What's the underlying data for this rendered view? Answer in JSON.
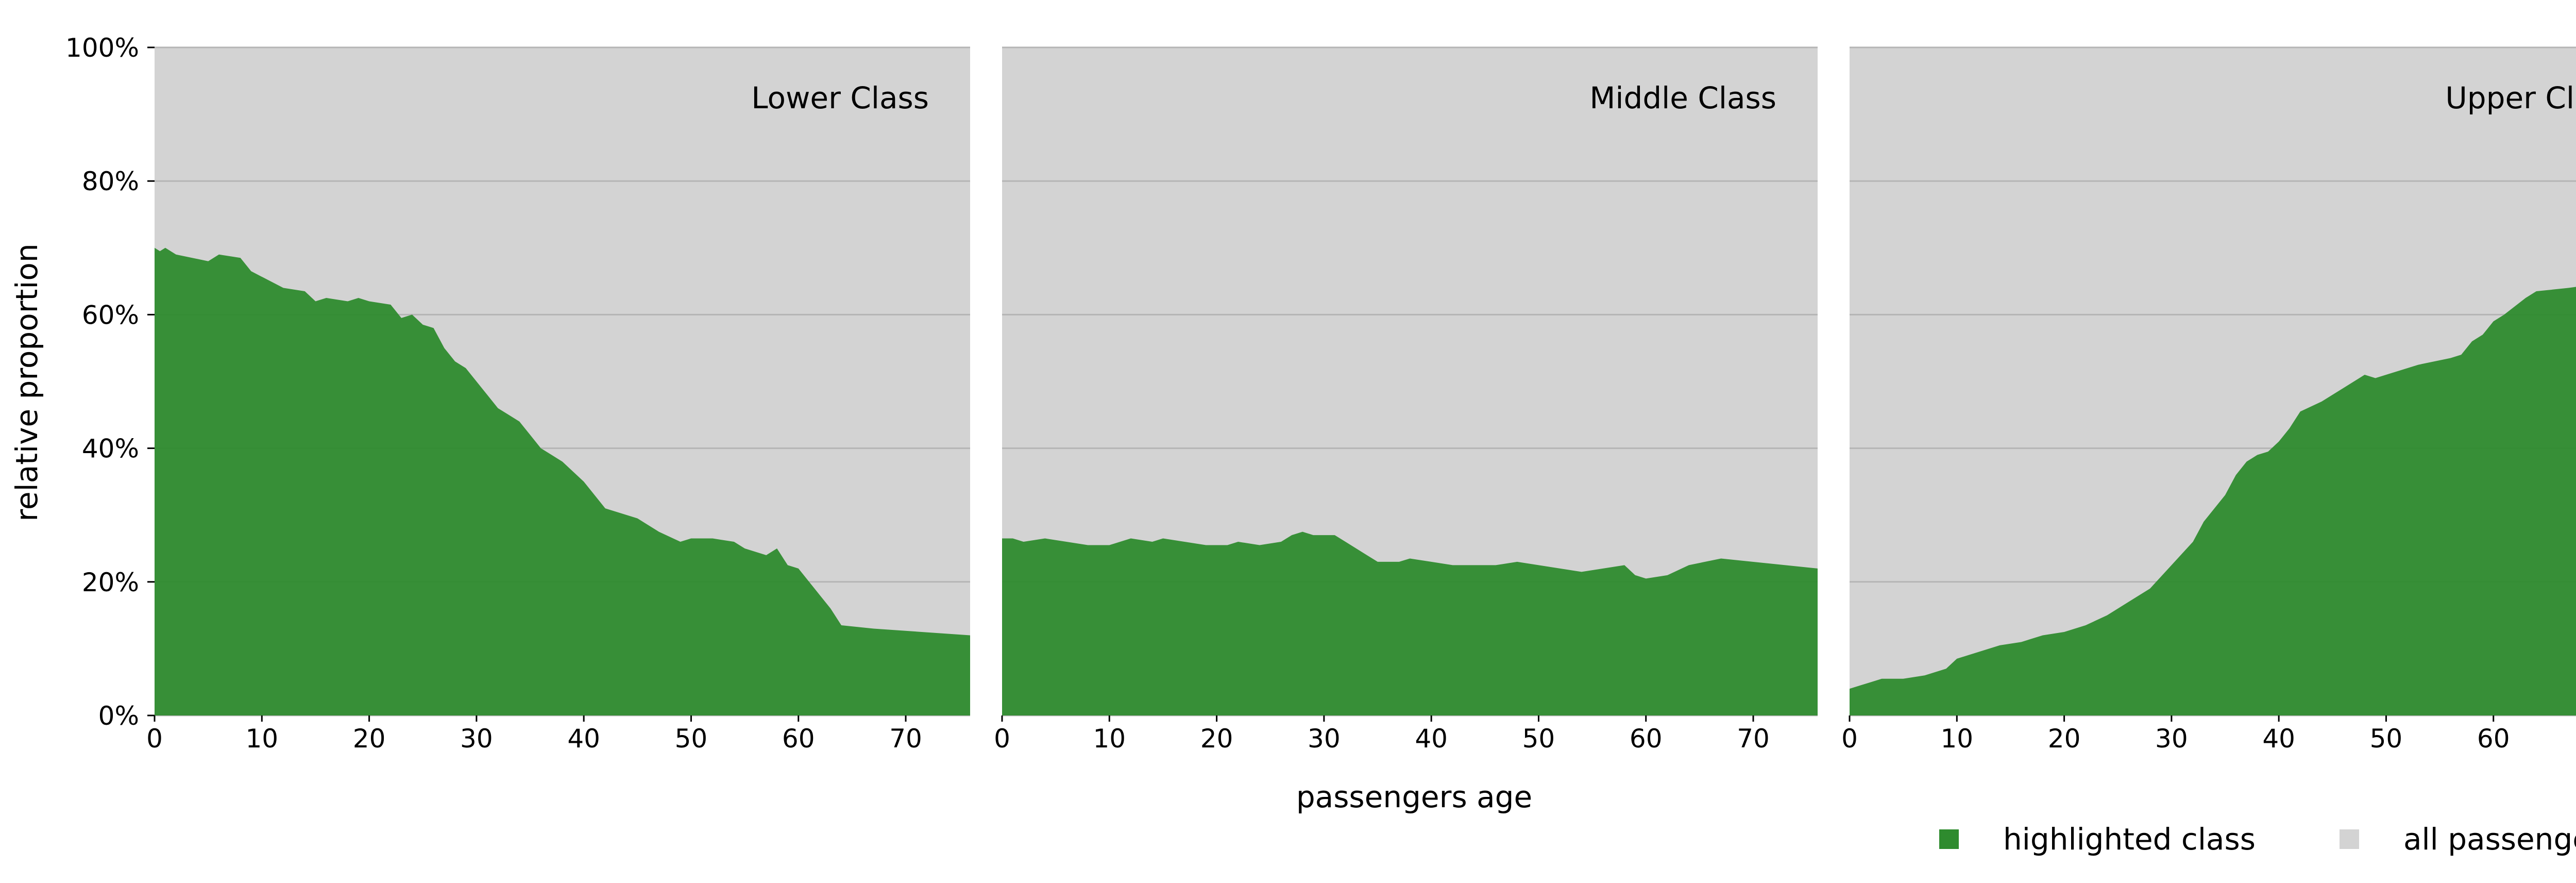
{
  "chart_data": {
    "type": "area",
    "xlabel": "passengers age",
    "ylabel": "relative proportion",
    "xlim": [
      0,
      76
    ],
    "ylim": [
      0,
      100
    ],
    "x_ticks": [
      0,
      10,
      20,
      30,
      40,
      50,
      60,
      70
    ],
    "x_tick_labels": [
      "0",
      "10",
      "20",
      "30",
      "40",
      "50",
      "60",
      "70"
    ],
    "y_ticks": [
      0,
      20,
      40,
      60,
      80,
      100
    ],
    "y_tick_labels": [
      "0%",
      "20%",
      "40%",
      "60%",
      "80%",
      "100%"
    ],
    "grid": "horizontal",
    "legend_placement": "bottom-right",
    "colors": {
      "highlight": "#2e8b2e",
      "background": "#d3d3d3",
      "grid": "#b5b5b5"
    },
    "legend": [
      {
        "label": "highlighted class",
        "color": "#2e8b2e"
      },
      {
        "label": "all passengers",
        "color": "#d3d3d3"
      }
    ],
    "panels": [
      {
        "title": "Lower Class",
        "background_values": [
          [
            0,
            100
          ],
          [
            76,
            100
          ]
        ],
        "values": [
          [
            0,
            70
          ],
          [
            0.5,
            69.5
          ],
          [
            1,
            70
          ],
          [
            2,
            69
          ],
          [
            5,
            68
          ],
          [
            6,
            69
          ],
          [
            8,
            68.5
          ],
          [
            9,
            66.5
          ],
          [
            12,
            64
          ],
          [
            14,
            63.5
          ],
          [
            15,
            62
          ],
          [
            16,
            62.5
          ],
          [
            18,
            62
          ],
          [
            19,
            62.5
          ],
          [
            20,
            62
          ],
          [
            22,
            61.5
          ],
          [
            23,
            59.5
          ],
          [
            24,
            60
          ],
          [
            25,
            58.5
          ],
          [
            26,
            58
          ],
          [
            27,
            55
          ],
          [
            28,
            53
          ],
          [
            29,
            52
          ],
          [
            31,
            48
          ],
          [
            32,
            46
          ],
          [
            33,
            45
          ],
          [
            34,
            44
          ],
          [
            35,
            42
          ],
          [
            36,
            40
          ],
          [
            37,
            39
          ],
          [
            38,
            38
          ],
          [
            40,
            35
          ],
          [
            42,
            31
          ],
          [
            45,
            29.5
          ],
          [
            47,
            27.5
          ],
          [
            49,
            26
          ],
          [
            50,
            26.5
          ],
          [
            52,
            26.5
          ],
          [
            54,
            26
          ],
          [
            55,
            25
          ],
          [
            57,
            24
          ],
          [
            58,
            25
          ],
          [
            59,
            22.5
          ],
          [
            60,
            22
          ],
          [
            62,
            18
          ],
          [
            63,
            16
          ],
          [
            64,
            13.5
          ],
          [
            67,
            13
          ],
          [
            76,
            12
          ]
        ]
      },
      {
        "title": "Middle Class",
        "background_values": [
          [
            0,
            100
          ],
          [
            76,
            100
          ]
        ],
        "values": [
          [
            0,
            26.5
          ],
          [
            1,
            26.5
          ],
          [
            2,
            26
          ],
          [
            4,
            26.5
          ],
          [
            6,
            26
          ],
          [
            8,
            25.5
          ],
          [
            10,
            25.5
          ],
          [
            12,
            26.5
          ],
          [
            14,
            26
          ],
          [
            15,
            26.5
          ],
          [
            17,
            26
          ],
          [
            19,
            25.5
          ],
          [
            21,
            25.5
          ],
          [
            22,
            26
          ],
          [
            24,
            25.5
          ],
          [
            26,
            26
          ],
          [
            27,
            27
          ],
          [
            28,
            27.5
          ],
          [
            29,
            27
          ],
          [
            31,
            27
          ],
          [
            32,
            26
          ],
          [
            33,
            25
          ],
          [
            34,
            24
          ],
          [
            35,
            23
          ],
          [
            37,
            23
          ],
          [
            38,
            23.5
          ],
          [
            40,
            23
          ],
          [
            42,
            22.5
          ],
          [
            44,
            22.5
          ],
          [
            46,
            22.5
          ],
          [
            48,
            23
          ],
          [
            50,
            22.5
          ],
          [
            52,
            22
          ],
          [
            54,
            21.5
          ],
          [
            56,
            22
          ],
          [
            58,
            22.5
          ],
          [
            59,
            21
          ],
          [
            60,
            20.5
          ],
          [
            62,
            21
          ],
          [
            64,
            22.5
          ],
          [
            67,
            23.5
          ],
          [
            76,
            22
          ]
        ]
      },
      {
        "title": "Upper Class",
        "background_values": [
          [
            0,
            100
          ],
          [
            76,
            100
          ]
        ],
        "values": [
          [
            0,
            4
          ],
          [
            1,
            4.5
          ],
          [
            2,
            5
          ],
          [
            3,
            5.5
          ],
          [
            5,
            5.5
          ],
          [
            7,
            6
          ],
          [
            9,
            7
          ],
          [
            10,
            8.5
          ],
          [
            12,
            9.5
          ],
          [
            14,
            10.5
          ],
          [
            16,
            11
          ],
          [
            18,
            12
          ],
          [
            20,
            12.5
          ],
          [
            22,
            13.5
          ],
          [
            24,
            15
          ],
          [
            26,
            17
          ],
          [
            28,
            19
          ],
          [
            30,
            22.5
          ],
          [
            32,
            26
          ],
          [
            33,
            29
          ],
          [
            35,
            33
          ],
          [
            36,
            36
          ],
          [
            37,
            38
          ],
          [
            38,
            39
          ],
          [
            39,
            39.5
          ],
          [
            40,
            41
          ],
          [
            41,
            43
          ],
          [
            42,
            45.5
          ],
          [
            44,
            47
          ],
          [
            46,
            49
          ],
          [
            48,
            51
          ],
          [
            49,
            50.5
          ],
          [
            50,
            51
          ],
          [
            53,
            52.5
          ],
          [
            56,
            53.5
          ],
          [
            57,
            54
          ],
          [
            58,
            56
          ],
          [
            59,
            57
          ],
          [
            60,
            59
          ],
          [
            61,
            60
          ],
          [
            63,
            62.5
          ],
          [
            64,
            63.5
          ],
          [
            67,
            64
          ],
          [
            76,
            66
          ]
        ]
      }
    ]
  }
}
